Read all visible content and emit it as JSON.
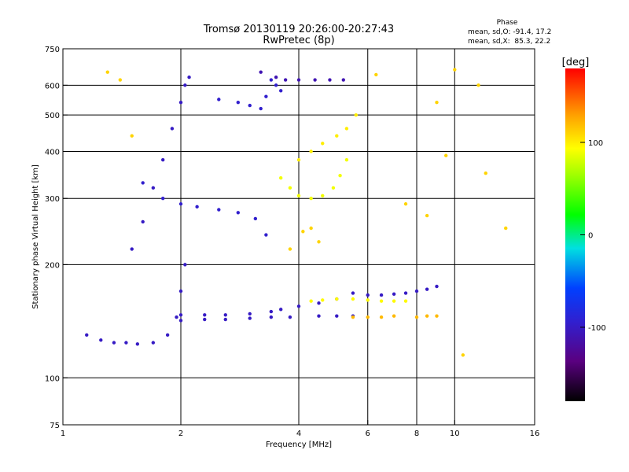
{
  "chart_data": {
    "type": "scatter",
    "title": "Tromsø 20130119 20:26:00-20:27:43",
    "subtitle": "RwPretec (8p)",
    "xlabel": "Frequency [MHz]",
    "ylabel": "Stationary phase Virtual Height [km]",
    "x_scale": "log",
    "y_scale": "log",
    "xlim": [
      1,
      16
    ],
    "ylim": [
      75,
      750
    ],
    "x_ticks": [
      1,
      2,
      4,
      6,
      8,
      10,
      16
    ],
    "y_ticks": [
      75,
      100,
      200,
      300,
      400,
      500,
      600,
      750
    ],
    "x_grid": [
      2,
      4,
      6,
      8,
      10
    ],
    "y_grid": [
      100,
      200,
      300,
      400,
      500,
      600
    ],
    "grid": true,
    "stats_title": "Phase",
    "stats": [
      "mean, sd,O: -91.4, 17.2",
      "mean, sd,X:  85.3, 22.2"
    ],
    "colorbar": {
      "label": "[deg]",
      "range": [
        -180,
        180
      ],
      "ticks": [
        100,
        0,
        -100
      ],
      "colormap": "rainbow: black-purple-blue-cyan-green-yellow-orange-red"
    },
    "series": [
      {
        "phase_deg": -100,
        "x": [
          1.15,
          1.25,
          1.35,
          1.45,
          1.55,
          1.7,
          1.85,
          1.95,
          2.0,
          2.05
        ],
        "y": [
          130,
          126,
          124,
          124,
          123,
          124,
          130,
          145,
          170,
          200
        ]
      },
      {
        "phase_deg": -100,
        "x": [
          1.5,
          1.6,
          1.7,
          1.8,
          1.9,
          2.0,
          2.05,
          2.1
        ],
        "y": [
          220,
          260,
          320,
          380,
          460,
          540,
          600,
          630
        ]
      },
      {
        "phase_deg": -95,
        "x": [
          1.6,
          1.8,
          2.0,
          2.2,
          2.5,
          2.8,
          3.1,
          3.3
        ],
        "y": [
          330,
          300,
          290,
          285,
          280,
          275,
          265,
          240
        ]
      },
      {
        "phase_deg": -100,
        "x": [
          2.0,
          2.3,
          2.6,
          3.0,
          3.4,
          3.6,
          4.0,
          4.5,
          5.0,
          5.5
        ],
        "y": [
          147,
          147,
          147,
          148,
          150,
          152,
          155,
          158,
          162,
          168
        ]
      },
      {
        "phase_deg": -100,
        "x": [
          2.0,
          2.3,
          2.6,
          3.0,
          3.4,
          3.8,
          4.5,
          5.0,
          5.5
        ],
        "y": [
          142,
          143,
          143,
          144,
          145,
          145,
          146,
          146,
          146
        ]
      },
      {
        "phase_deg": -95,
        "x": [
          2.5,
          2.8,
          3.0,
          3.2,
          3.3,
          3.4,
          3.5,
          3.6
        ],
        "y": [
          550,
          540,
          530,
          520,
          560,
          620,
          600,
          580
        ]
      },
      {
        "phase_deg": -110,
        "x": [
          3.2,
          3.5,
          3.7,
          4.0,
          4.4,
          4.8,
          5.2
        ],
        "y": [
          650,
          630,
          620,
          620,
          620,
          620,
          620
        ]
      },
      {
        "phase_deg": 90,
        "x": [
          3.6,
          3.8,
          4.0,
          4.3,
          4.6,
          4.9,
          5.1,
          5.3
        ],
        "y": [
          340,
          320,
          305,
          300,
          305,
          320,
          345,
          380
        ]
      },
      {
        "phase_deg": 100,
        "x": [
          4.0,
          4.3,
          4.6,
          5.0,
          5.3,
          5.6
        ],
        "y": [
          380,
          400,
          420,
          440,
          460,
          500
        ]
      },
      {
        "phase_deg": 95,
        "x": [
          4.3,
          4.6,
          5.0,
          5.5,
          6.0,
          6.5,
          7.0,
          7.5
        ],
        "y": [
          160,
          161,
          162,
          162,
          161,
          160,
          160,
          160
        ]
      },
      {
        "phase_deg": 120,
        "x": [
          5.5,
          6.0,
          6.5,
          7.0,
          8.0,
          8.5,
          9.0
        ],
        "y": [
          145,
          145,
          145,
          146,
          145,
          146,
          146
        ]
      },
      {
        "phase_deg": -100,
        "x": [
          6.0,
          6.5,
          7.0,
          7.5,
          8.0,
          8.5,
          9.0
        ],
        "y": [
          166,
          166,
          167,
          168,
          170,
          172,
          175
        ]
      },
      {
        "phase_deg": 110,
        "x": [
          1.3,
          1.4,
          1.5,
          3.8,
          4.1,
          4.3,
          4.5,
          6.3,
          7.5,
          8.5,
          10.0,
          10.5,
          11.5,
          12.0,
          13.5,
          9.0,
          9.5
        ],
        "y": [
          650,
          620,
          440,
          220,
          245,
          250,
          230,
          640,
          290,
          270,
          660,
          115,
          600,
          350,
          250,
          540,
          390
        ]
      }
    ]
  }
}
